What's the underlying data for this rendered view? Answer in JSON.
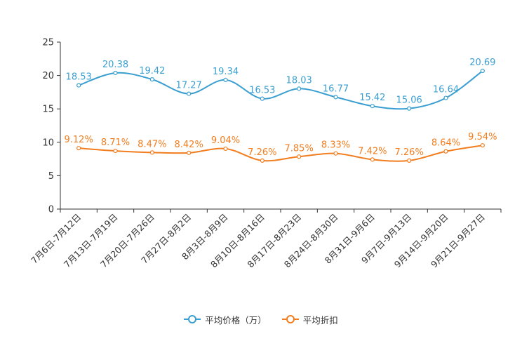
{
  "colors": {
    "series1": "#3a9fd0",
    "series2": "#f27d1e",
    "axis": "#333333"
  },
  "chart_data": {
    "type": "line",
    "title": "",
    "xlabel": "",
    "ylabel": "",
    "ylim": [
      0,
      25
    ],
    "yticks": [
      "0",
      "5",
      "10",
      "15",
      "20",
      "25"
    ],
    "grid": false,
    "legend_position": "bottom-center",
    "categories": [
      "7月6日-7月12日",
      "7月13日-7月19日",
      "7月20日-7月26日",
      "7月27日-8月2日",
      "8月3日-8月9日",
      "8月10日-8月16日",
      "8月17日-8月23日",
      "8月24日-8月30日",
      "8月31日-9月6日",
      "9月7日-9月13日",
      "9月14日-9月20日",
      "9月21日-9月27日"
    ],
    "series": [
      {
        "name": "平均价格（万）",
        "values": [
          18.53,
          20.38,
          19.42,
          17.27,
          19.34,
          16.53,
          18.03,
          16.77,
          15.42,
          15.06,
          16.64,
          20.69
        ],
        "labels": [
          "18.53",
          "20.38",
          "19.42",
          "17.27",
          "19.34",
          "16.53",
          "18.03",
          "16.77",
          "15.42",
          "15.06",
          "16.64",
          "20.69"
        ]
      },
      {
        "name": "平均折扣",
        "values": [
          9.12,
          8.71,
          8.47,
          8.42,
          9.04,
          7.26,
          7.85,
          8.33,
          7.42,
          7.26,
          8.64,
          9.54
        ],
        "labels": [
          "9.12%",
          "8.71%",
          "8.47%",
          "8.42%",
          "9.04%",
          "7.26%",
          "7.85%",
          "8.33%",
          "7.42%",
          "7.26%",
          "8.64%",
          "9.54%"
        ]
      }
    ]
  }
}
